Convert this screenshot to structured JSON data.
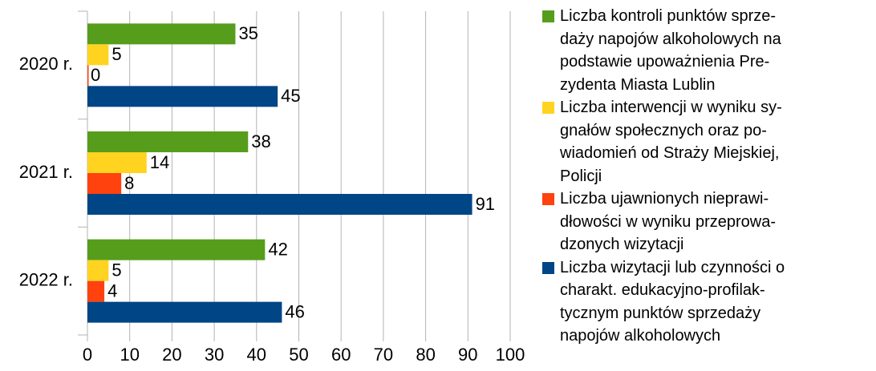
{
  "chart_data": {
    "type": "hbar",
    "categories": [
      "2020 r.",
      "2021 r.",
      "2022 r."
    ],
    "series": [
      {
        "name": "Liczba kontroli punktów sprze-\ndaży napojów alkoholowych na\npodstawie upoważnienia Pre-\nzydenta Miasta Lublin",
        "color": "#579d1c",
        "values": [
          35,
          38,
          42
        ]
      },
      {
        "name": "Liczba interwencji w wyniku sy-\ngnałów społecznych oraz po-\nwiadomień od Straży Miejskiej,\nPolicji",
        "color": "#ffd320",
        "values": [
          5,
          14,
          5
        ]
      },
      {
        "name": "Liczba ujawnionych nieprawi-\ndłowości w wyniku przeprowa-\ndzonych wizytacji",
        "color": "#ff420e",
        "values": [
          0,
          8,
          4
        ]
      },
      {
        "name": "Liczba wizytacji lub czynności o\ncharakt. edukacyjno-profilak-\ntycznym punktów sprzedaży\nnapojów alkoholowych",
        "color": "#004586",
        "values": [
          45,
          91,
          46
        ]
      }
    ],
    "xlim": [
      0,
      100
    ],
    "xticks": [
      0,
      10,
      20,
      30,
      40,
      50,
      60,
      70,
      80,
      90,
      100
    ],
    "grid": true,
    "legend": "right"
  }
}
